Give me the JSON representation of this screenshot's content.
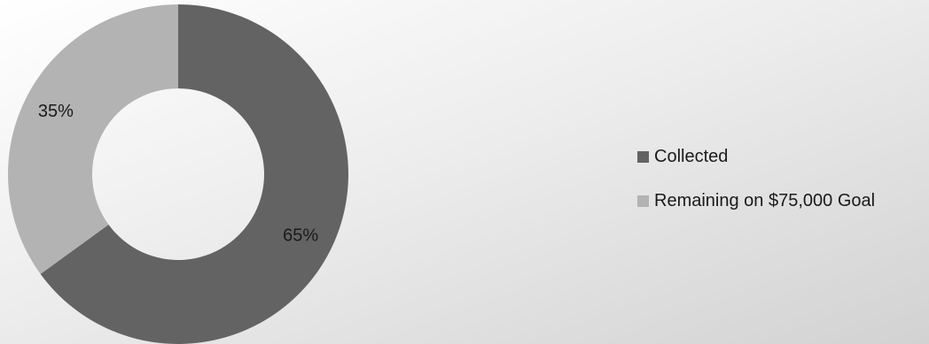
{
  "chart_data": {
    "type": "pie",
    "variant": "donut",
    "categories": [
      "Collected",
      "Remaining on $75,000 Goal"
    ],
    "values": [
      65,
      35
    ],
    "data_labels": [
      "65%",
      "35%"
    ],
    "colors": [
      "#636363",
      "#b3b3b3"
    ],
    "legend_placement": "right"
  }
}
